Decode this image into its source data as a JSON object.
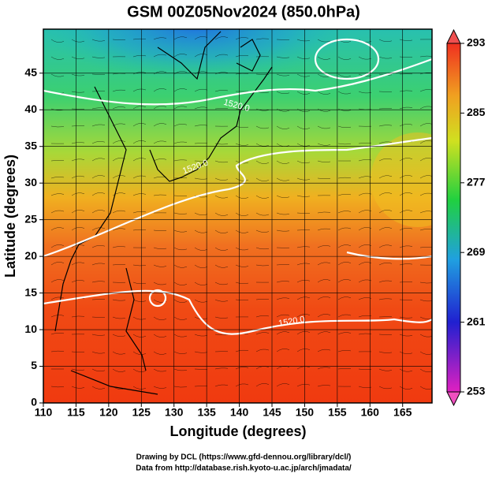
{
  "chart_data": {
    "type": "map",
    "title": "GSM 00Z05Nov2024 (850.0hPa)",
    "x_label": "Longitude (degrees)",
    "y_label": "Latitude  (degrees)",
    "xlim": [
      110,
      169.5
    ],
    "xticks": [
      110,
      115,
      120,
      125,
      130,
      135,
      140,
      145,
      150,
      155,
      160,
      165
    ],
    "ylim": [
      0,
      51
    ],
    "yticks": [
      0,
      5,
      10,
      15,
      20,
      25,
      30,
      35,
      40,
      45
    ],
    "grid": true,
    "colorbar": {
      "lim": [
        253,
        293
      ],
      "ticks": [
        253,
        261,
        269,
        277,
        285,
        293
      ]
    },
    "contour_labels": [
      "1520.0",
      "1520.0",
      "1520.0"
    ],
    "credits": [
      "Drawing by DCL (https://www.gfd-dennou.org/library/dcl/)",
      "Data from http://database.rish.kyoto-u.ac.jp/arch/jmadata/"
    ]
  }
}
